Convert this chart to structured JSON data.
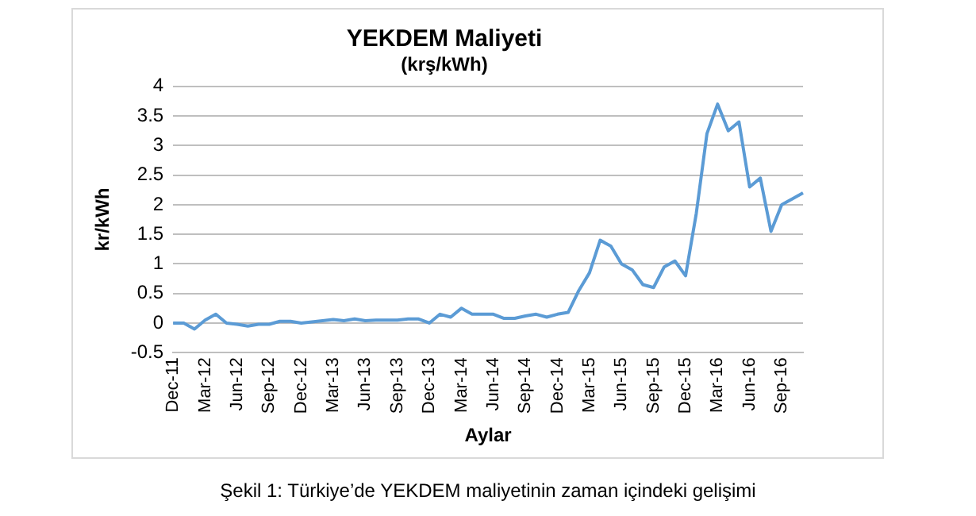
{
  "chart_data": {
    "type": "line",
    "title": "YEKDEM Maliyeti",
    "subtitle": "(krş/kWh)",
    "xlabel": "Aylar",
    "ylabel": "kr/kWh",
    "annotations": [
      "Şekil 1: Türkiye’de YEKDEM maliyetinin zaman içindeki gelişimi"
    ],
    "categories": [
      "Dec-11",
      null,
      null,
      "Mar-12",
      null,
      null,
      "Jun-12",
      null,
      null,
      "Sep-12",
      null,
      null,
      "Dec-12",
      null,
      null,
      "Mar-13",
      null,
      null,
      "Jun-13",
      null,
      null,
      "Sep-13",
      null,
      null,
      "Dec-13",
      null,
      null,
      "Mar-14",
      null,
      null,
      "Jun-14",
      null,
      null,
      "Sep-14",
      null,
      null,
      "Dec-14",
      null,
      null,
      "Mar-15",
      null,
      null,
      "Jun-15",
      null,
      null,
      "Sep-15",
      null,
      null,
      "Dec-15",
      null,
      null,
      "Mar-16",
      null,
      null,
      "Jun-16",
      null,
      null,
      "Sep-16",
      null,
      null
    ],
    "series": [
      {
        "color": "#5b9bd5",
        "values": [
          0,
          0,
          -0.1,
          0.05,
          0.15,
          0,
          -0.02,
          -0.05,
          -0.02,
          -0.02,
          0.03,
          0.03,
          0,
          0.02,
          0.04,
          0.06,
          0.04,
          0.07,
          0.04,
          0.05,
          0.05,
          0.05,
          0.07,
          0.07,
          0,
          0.15,
          0.1,
          0.25,
          0.15,
          0.15,
          0.15,
          0.08,
          0.08,
          0.12,
          0.15,
          0.1,
          0.15,
          0.18,
          0.55,
          0.85,
          1.4,
          1.3,
          1.0,
          0.9,
          0.65,
          0.6,
          0.95,
          1.05,
          0.8,
          1.85,
          3.2,
          3.7,
          3.25,
          3.4,
          2.3,
          2.45,
          1.55,
          2.0,
          2.1,
          2.2
        ]
      }
    ],
    "ylim": [
      -0.5,
      4
    ],
    "yticks": [
      -0.5,
      0,
      0.5,
      1,
      1.5,
      2,
      2.5,
      3,
      3.5,
      4
    ],
    "grid": "y",
    "legend": false,
    "marker": "none",
    "line_style": "solid"
  }
}
